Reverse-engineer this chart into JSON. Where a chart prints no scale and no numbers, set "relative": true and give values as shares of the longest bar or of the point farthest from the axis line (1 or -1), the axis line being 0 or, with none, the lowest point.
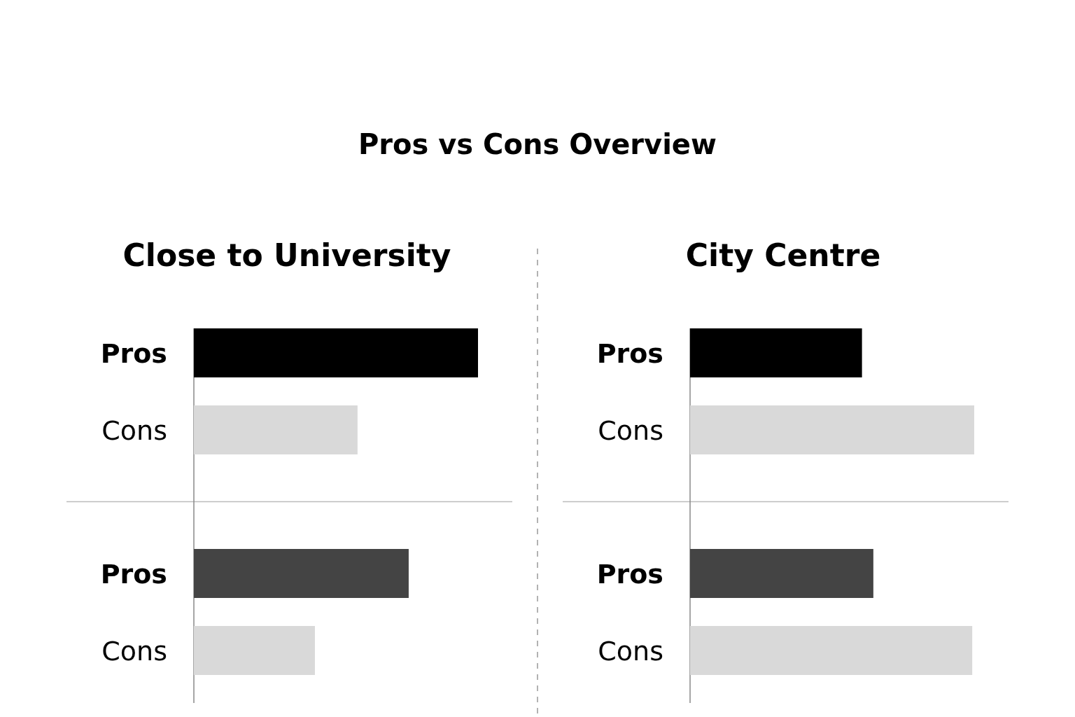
{
  "chart_data": [
    {
      "type": "other",
      "title": "Pros vs Cons Overview"
    },
    {
      "type": "bar",
      "orientation": "horizontal",
      "relative": true,
      "title": "Close to University",
      "categories": [
        "Pros",
        "Cons",
        "Pros",
        "Cons"
      ],
      "values": [
        1,
        0.576,
        0.756,
        0.426
      ],
      "colors": [
        "#000000",
        "#d9d9d9",
        "#444444",
        "#d9d9d9"
      ]
    },
    {
      "type": "bar",
      "orientation": "horizontal",
      "relative": true,
      "title": "City Centre",
      "categories": [
        "Pros",
        "Cons",
        "Pros",
        "Cons"
      ],
      "values": [
        0.605,
        1,
        0.645,
        0.993
      ],
      "colors": [
        "#000000",
        "#d9d9d9",
        "#444444",
        "#d9d9d9"
      ]
    }
  ]
}
